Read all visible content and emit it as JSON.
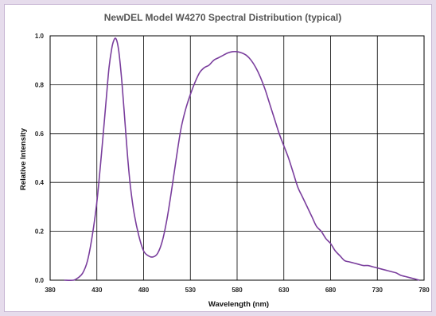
{
  "chart_data": {
    "type": "line",
    "title": "NewDEL Model W4270 Spectral Distribution (typical)",
    "xlabel": "Wavelength (nm)",
    "ylabel": "Relative Intensity",
    "xlim": [
      380,
      780
    ],
    "ylim": [
      0,
      1.0
    ],
    "x_ticks": [
      "380",
      "430",
      "480",
      "530",
      "580",
      "630",
      "680",
      "730",
      "780"
    ],
    "y_ticks": [
      "0.0",
      "0.2",
      "0.4",
      "0.6",
      "0.8",
      "1.0"
    ],
    "grid": true,
    "legend": "none",
    "line_color": "#7a3e9d",
    "series": [
      {
        "x": [
          395,
          405,
          410,
          415,
          420,
          425,
          430,
          435,
          440,
          443,
          446,
          448,
          450,
          452,
          454,
          457,
          460,
          463,
          466,
          470,
          475,
          480,
          485,
          490,
          495,
          500,
          505,
          510,
          515,
          520,
          525,
          530,
          535,
          540,
          545,
          550,
          555,
          560,
          565,
          570,
          575,
          580,
          585,
          590,
          595,
          600,
          605,
          610,
          615,
          620,
          625,
          630,
          635,
          640,
          645,
          650,
          655,
          660,
          665,
          670,
          675,
          680,
          685,
          690,
          695,
          700,
          705,
          710,
          715,
          720,
          725,
          730,
          735,
          740,
          745,
          750,
          755,
          760,
          765,
          770,
          775
        ],
        "values": [
          0.0,
          0.0,
          0.01,
          0.03,
          0.08,
          0.18,
          0.32,
          0.52,
          0.74,
          0.87,
          0.95,
          0.98,
          0.99,
          0.97,
          0.92,
          0.8,
          0.65,
          0.5,
          0.38,
          0.27,
          0.18,
          0.12,
          0.1,
          0.095,
          0.11,
          0.16,
          0.25,
          0.37,
          0.5,
          0.62,
          0.7,
          0.76,
          0.81,
          0.85,
          0.87,
          0.88,
          0.9,
          0.91,
          0.92,
          0.93,
          0.935,
          0.935,
          0.93,
          0.92,
          0.9,
          0.87,
          0.83,
          0.78,
          0.72,
          0.66,
          0.6,
          0.55,
          0.5,
          0.44,
          0.38,
          0.34,
          0.3,
          0.26,
          0.22,
          0.2,
          0.17,
          0.15,
          0.12,
          0.1,
          0.08,
          0.075,
          0.07,
          0.065,
          0.06,
          0.06,
          0.055,
          0.05,
          0.045,
          0.04,
          0.035,
          0.03,
          0.02,
          0.015,
          0.01,
          0.005,
          0.0
        ]
      }
    ]
  }
}
